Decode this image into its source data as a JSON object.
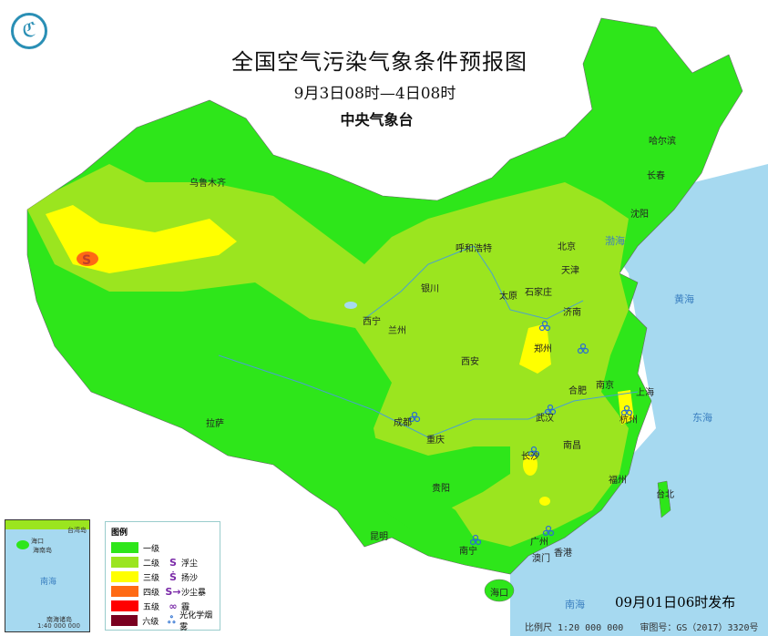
{
  "header": {
    "title": "全国空气污染气象条件预报图",
    "period": "9月3日08时—4日08时",
    "issuer": "中央气象台"
  },
  "colors": {
    "sea": "#a6d9f0",
    "level1": "#2ee61a",
    "level2": "#9be51f",
    "level3": "#ffff00",
    "level4": "#ff6a14",
    "level5": "#ff0000",
    "level6": "#7a0020"
  },
  "legend": {
    "title": "图例",
    "levels": [
      {
        "label": "一级",
        "color": "#2ee61a"
      },
      {
        "label": "二级",
        "color": "#9be51f"
      },
      {
        "label": "三级",
        "color": "#ffff00"
      },
      {
        "label": "四级",
        "color": "#ff6a14"
      },
      {
        "label": "五级",
        "color": "#ff0000"
      },
      {
        "label": "六级",
        "color": "#7a0020"
      }
    ],
    "symbols": [
      {
        "icon": "floating-dust-icon",
        "label": "浮尘"
      },
      {
        "icon": "blowing-sand-icon",
        "label": "扬沙"
      },
      {
        "icon": "sandstorm-icon",
        "label": "沙尘暴"
      },
      {
        "icon": "haze-icon",
        "label": "霾"
      },
      {
        "icon": "photochemical-smog-icon",
        "label": "光化学烟雾"
      }
    ]
  },
  "cities": [
    "乌鲁木齐",
    "哈尔滨",
    "长春",
    "沈阳",
    "呼和浩特",
    "北京",
    "天津",
    "石家庄",
    "太原",
    "银川",
    "济南",
    "西宁",
    "兰州",
    "郑州",
    "西安",
    "合肥",
    "南京",
    "上海",
    "成都",
    "武汉",
    "杭州",
    "重庆",
    "拉萨",
    "长沙",
    "南昌",
    "贵阳",
    "福州",
    "台北",
    "昆明",
    "南宁",
    "广州",
    "澳门",
    "香港",
    "海口"
  ],
  "seas": [
    "渤海",
    "黄海",
    "东海",
    "南海"
  ],
  "inset": {
    "labels": [
      "海口",
      "海南岛",
      "台湾岛",
      "南海",
      "南海诸岛"
    ],
    "scale": "1:40 000 000"
  },
  "footer": {
    "issued": "09月01日06时发布",
    "scale": "比例尺 1:20 000 000",
    "approval": "审图号：GS（2017）3320号"
  }
}
